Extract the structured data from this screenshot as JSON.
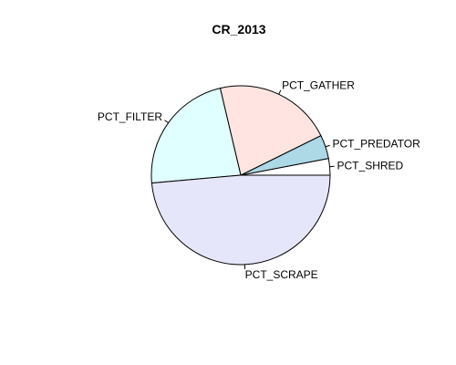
{
  "chart_data": {
    "type": "pie",
    "title": "CR_2013",
    "start_angle_deg": 0,
    "direction": "counterclockwise",
    "slices": [
      {
        "label": "PCT_SHRED",
        "value": 0.03,
        "color": "#FFFFFF"
      },
      {
        "label": "PCT_PREDATOR",
        "value": 0.043,
        "color": "#ADD8E6"
      },
      {
        "label": "PCT_GATHER",
        "value": 0.214,
        "color": "#FFE4E1"
      },
      {
        "label": "PCT_FILTER",
        "value": 0.227,
        "color": "#E0FFFF"
      },
      {
        "label": "PCT_SCRAPE",
        "value": 0.486,
        "color": "#E6E6FA"
      }
    ]
  }
}
